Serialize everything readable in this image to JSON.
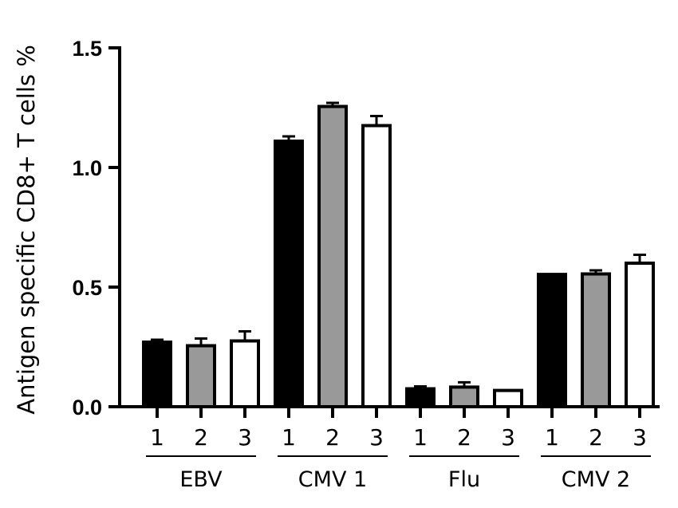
{
  "chart_data": {
    "type": "bar",
    "ylabel": "Antigen specific CD8+ T cells %",
    "xlabel": "",
    "ylim": [
      0,
      1.5
    ],
    "yticks": [
      "0.0",
      "0.5",
      "1.0",
      "1.5"
    ],
    "grid": false,
    "groups": [
      {
        "name": "EBV",
        "bars": [
          {
            "label": "1",
            "value": 0.27,
            "error": 0.01,
            "color": "#000000"
          },
          {
            "label": "2",
            "value": 0.255,
            "error": 0.03,
            "color": "#999999"
          },
          {
            "label": "3",
            "value": 0.275,
            "error": 0.04,
            "color": "#ffffff"
          }
        ]
      },
      {
        "name": "CMV 1",
        "bars": [
          {
            "label": "1",
            "value": 1.11,
            "error": 0.02,
            "color": "#000000"
          },
          {
            "label": "2",
            "value": 1.255,
            "error": 0.015,
            "color": "#999999"
          },
          {
            "label": "3",
            "value": 1.175,
            "error": 0.04,
            "color": "#ffffff"
          }
        ]
      },
      {
        "name": "Flu",
        "bars": [
          {
            "label": "1",
            "value": 0.075,
            "error": 0.01,
            "color": "#000000"
          },
          {
            "label": "2",
            "value": 0.082,
            "error": 0.02,
            "color": "#999999"
          },
          {
            "label": "3",
            "value": 0.068,
            "error": 0.0,
            "color": "#ffffff"
          }
        ]
      },
      {
        "name": "CMV 2",
        "bars": [
          {
            "label": "1",
            "value": 0.553,
            "error": 0.0,
            "color": "#000000"
          },
          {
            "label": "2",
            "value": 0.555,
            "error": 0.015,
            "color": "#999999"
          },
          {
            "label": "3",
            "value": 0.6,
            "error": 0.035,
            "color": "#ffffff"
          }
        ]
      }
    ]
  }
}
